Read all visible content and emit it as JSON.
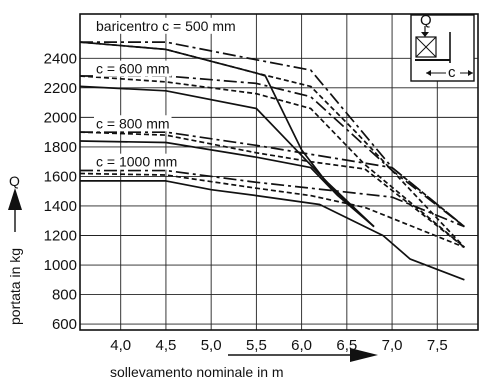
{
  "chart_data": {
    "type": "line",
    "xlabel": "sollevamento nominale in m",
    "ylabel": "portata in kg",
    "y_symbol": "Q",
    "xlim": [
      3.55,
      7.95
    ],
    "ylim": [
      560,
      2700
    ],
    "x_ticks": [
      4.0,
      4.5,
      5.0,
      5.5,
      6.0,
      6.5,
      7.0,
      7.5
    ],
    "x_tick_labels": [
      "4,0",
      "4,5",
      "5,0",
      "5,5",
      "6,0",
      "6,5",
      "7,0",
      "7,5"
    ],
    "y_ticks": [
      600,
      800,
      1000,
      1200,
      1400,
      1600,
      1800,
      2000,
      2200,
      2400
    ],
    "y_tick_labels": [
      "600",
      "800",
      "1000",
      "1200",
      "1400",
      "1600",
      "1800",
      "2000",
      "2200",
      "2400"
    ],
    "grid": true,
    "inset": {
      "load_symbol": "Q",
      "distance_symbol": "c"
    },
    "groups": [
      {
        "label": "baricentro  c = 500 mm",
        "series": [
          {
            "style": "dashdot",
            "points": [
              [
                3.55,
                2510
              ],
              [
                4.5,
                2510
              ],
              [
                5.5,
                2390
              ],
              [
                6.1,
                2320
              ],
              [
                7.0,
                1660
              ],
              [
                7.8,
                1260
              ]
            ]
          },
          {
            "style": "dashed",
            "points": [
              [
                3.55,
                2510
              ],
              [
                4.5,
                2460
              ],
              [
                5.5,
                2300
              ],
              [
                6.1,
                2210
              ],
              [
                6.6,
                1900
              ],
              [
                7.8,
                1120
              ]
            ]
          },
          {
            "style": "solid",
            "points": [
              [
                3.55,
                2510
              ],
              [
                4.5,
                2460
              ],
              [
                5.5,
                2300
              ],
              [
                5.6,
                2280
              ],
              [
                6.0,
                1780
              ],
              [
                6.3,
                1540
              ],
              [
                6.8,
                1260
              ]
            ]
          }
        ]
      },
      {
        "label": "c = 600 mm",
        "series": [
          {
            "style": "dashdot",
            "points": [
              [
                3.55,
                2280
              ],
              [
                4.5,
                2280
              ],
              [
                5.5,
                2230
              ],
              [
                6.1,
                2140
              ],
              [
                7.0,
                1640
              ],
              [
                7.8,
                1260
              ]
            ]
          },
          {
            "style": "dashed",
            "points": [
              [
                3.55,
                2280
              ],
              [
                4.5,
                2240
              ],
              [
                5.5,
                2160
              ],
              [
                6.1,
                2060
              ],
              [
                6.7,
                1680
              ],
              [
                7.8,
                1120
              ]
            ]
          },
          {
            "style": "solid",
            "points": [
              [
                3.55,
                2210
              ],
              [
                4.5,
                2180
              ],
              [
                5.5,
                2060
              ],
              [
                6.3,
                1550
              ],
              [
                6.8,
                1260
              ]
            ]
          }
        ]
      },
      {
        "label": "c = 800 mm",
        "series": [
          {
            "style": "dashdot",
            "points": [
              [
                3.55,
                1900
              ],
              [
                4.5,
                1900
              ],
              [
                5.5,
                1810
              ],
              [
                6.1,
                1750
              ],
              [
                7.0,
                1660
              ],
              [
                7.8,
                1260
              ]
            ]
          },
          {
            "style": "dashed",
            "points": [
              [
                3.55,
                1900
              ],
              [
                4.5,
                1880
              ],
              [
                5.5,
                1760
              ],
              [
                6.1,
                1700
              ],
              [
                6.7,
                1650
              ],
              [
                7.8,
                1120
              ]
            ]
          },
          {
            "style": "solid",
            "points": [
              [
                3.55,
                1840
              ],
              [
                4.5,
                1830
              ],
              [
                5.5,
                1730
              ],
              [
                6.1,
                1660
              ],
              [
                6.4,
                1470
              ],
              [
                6.8,
                1260
              ]
            ]
          }
        ]
      },
      {
        "label": "c = 1000 mm",
        "series": [
          {
            "style": "dashdot",
            "points": [
              [
                3.55,
                1640
              ],
              [
                4.5,
                1640
              ],
              [
                5.5,
                1560
              ],
              [
                6.1,
                1520
              ],
              [
                7.0,
                1460
              ],
              [
                7.8,
                1260
              ]
            ]
          },
          {
            "style": "dashed",
            "points": [
              [
                3.55,
                1620
              ],
              [
                4.5,
                1610
              ],
              [
                5.5,
                1520
              ],
              [
                6.1,
                1470
              ],
              [
                6.7,
                1390
              ],
              [
                7.8,
                1120
              ]
            ]
          },
          {
            "style": "solid",
            "points": [
              [
                3.55,
                1570
              ],
              [
                4.5,
                1570
              ],
              [
                5.0,
                1510
              ],
              [
                5.5,
                1470
              ],
              [
                6.2,
                1410
              ],
              [
                6.9,
                1200
              ],
              [
                7.2,
                1040
              ],
              [
                7.8,
                900
              ]
            ]
          }
        ]
      }
    ]
  }
}
